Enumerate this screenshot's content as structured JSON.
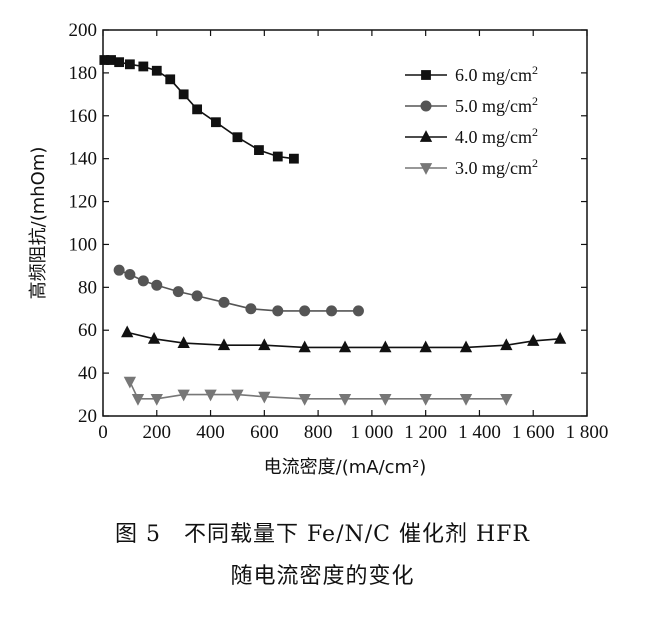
{
  "chart_data": {
    "type": "line",
    "title": "",
    "xlabel": "电流密度/(mA/cm²)",
    "ylabel": "高频阻抗/(mhOm)",
    "xlim": [
      0,
      1800
    ],
    "ylim": [
      20,
      200
    ],
    "x_ticks": [
      0,
      200,
      400,
      600,
      800,
      1000,
      1200,
      1400,
      1600,
      1800
    ],
    "x_tick_labels": [
      "0",
      "200",
      "400",
      "600",
      "800",
      "1 000",
      "1 200",
      "1 400",
      "1 600",
      "1 800"
    ],
    "y_ticks": [
      20,
      40,
      60,
      80,
      100,
      120,
      140,
      160,
      180,
      200
    ],
    "grid": false,
    "legend_position": "top-right",
    "series": [
      {
        "name": "6.0 mg/cm²",
        "marker": "square",
        "color": "#111111",
        "x": [
          5,
          30,
          60,
          100,
          150,
          200,
          250,
          300,
          350,
          420,
          500,
          580,
          650,
          710
        ],
        "y": [
          186,
          186,
          185,
          184,
          183,
          181,
          177,
          170,
          163,
          157,
          150,
          144,
          141,
          140
        ]
      },
      {
        "name": "5.0 mg/cm²",
        "marker": "circle",
        "color": "#555555",
        "x": [
          60,
          100,
          150,
          200,
          280,
          350,
          450,
          550,
          650,
          750,
          850,
          950
        ],
        "y": [
          88,
          86,
          83,
          81,
          78,
          76,
          73,
          70,
          69,
          69,
          69,
          69
        ]
      },
      {
        "name": "4.0 mg/cm²",
        "marker": "triangle-up",
        "color": "#111111",
        "x": [
          90,
          190,
          300,
          450,
          600,
          750,
          900,
          1050,
          1200,
          1350,
          1500,
          1600,
          1700
        ],
        "y": [
          59,
          56,
          54,
          53,
          53,
          52,
          52,
          52,
          52,
          52,
          53,
          55,
          56
        ]
      },
      {
        "name": "3.0 mg/cm²",
        "marker": "triangle-down",
        "color": "#777777",
        "x": [
          100,
          130,
          200,
          300,
          400,
          500,
          600,
          750,
          900,
          1050,
          1200,
          1350,
          1500
        ],
        "y": [
          36,
          28,
          28,
          30,
          30,
          30,
          29,
          28,
          28,
          28,
          28,
          28,
          28
        ]
      }
    ]
  },
  "caption": {
    "line1": "图 5　不同载量下 Fe/N/C 催化剂 HFR",
    "line2": "随电流密度的变化"
  }
}
